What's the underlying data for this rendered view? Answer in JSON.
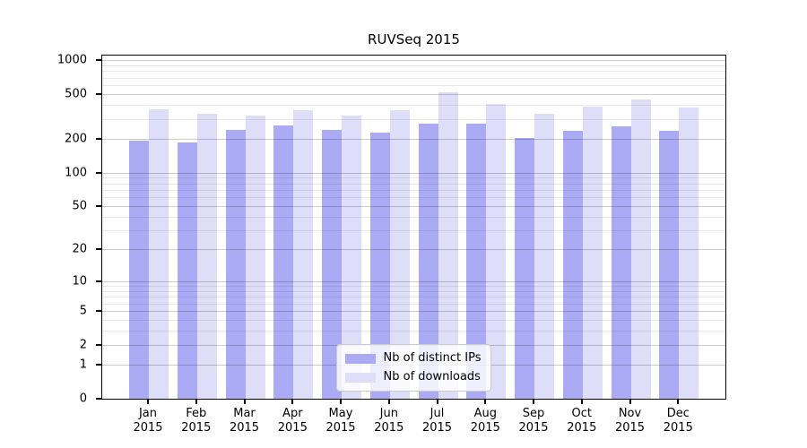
{
  "chart_data": {
    "type": "bar",
    "title": "RUVSeq 2015",
    "categories": [
      "Jan 2015",
      "Feb 2015",
      "Mar 2015",
      "Apr 2015",
      "May 2015",
      "Jun 2015",
      "Jul 2015",
      "Aug 2015",
      "Sep 2015",
      "Oct 2015",
      "Nov 2015",
      "Dec 2015"
    ],
    "series": [
      {
        "name": "Nb of distinct IPs",
        "color": "#aaaaf5",
        "values": [
          193,
          186,
          239,
          261,
          238,
          226,
          272,
          272,
          204,
          237,
          258,
          237
        ]
      },
      {
        "name": "Nb of downloads",
        "color": "#dedef8",
        "values": [
          366,
          335,
          324,
          360,
          320,
          360,
          519,
          410,
          335,
          386,
          451,
          382
        ]
      }
    ],
    "y_scale": "log1p",
    "ylim": [
      0,
      1096
    ],
    "y_ticks": [
      1000,
      500,
      200,
      100,
      50,
      20,
      10,
      5,
      2,
      1,
      0
    ],
    "y_minor_gridlines": [
      3,
      4,
      6,
      7,
      8,
      9,
      30,
      40,
      60,
      70,
      80,
      90,
      300,
      400,
      600,
      700,
      800,
      900
    ],
    "grid": true,
    "legend_position": "lower center"
  },
  "styles": {
    "bar_color_dark": "#aaaaf5",
    "bar_color_light": "#dedef8",
    "major_grid_color": "rgba(0,0,0,0.20)",
    "minor_grid_color": "rgba(0,0,0,0.085)",
    "axis_color": "#000000",
    "background": "#ffffff"
  }
}
